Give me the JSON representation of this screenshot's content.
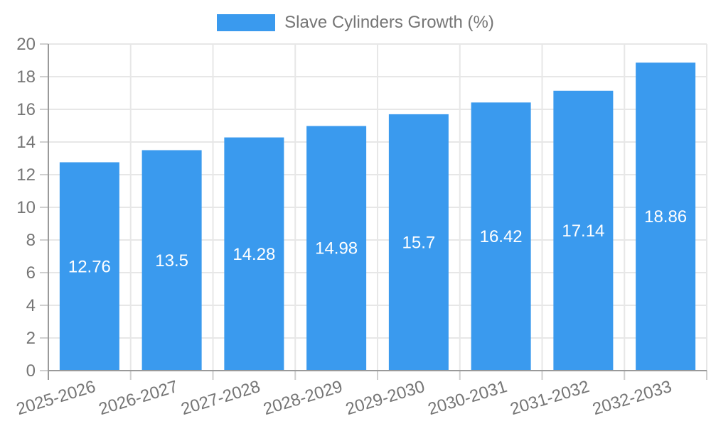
{
  "legend": {
    "label": "Slave Cylinders Growth (%)"
  },
  "chart_data": {
    "type": "bar",
    "title": "Slave Cylinders Growth (%)",
    "categories": [
      "2025-2026",
      "2026-2027",
      "2027-2028",
      "2028-2029",
      "2029-2030",
      "2030-2031",
      "2031-2032",
      "2032-2033"
    ],
    "series": [
      {
        "name": "Slave Cylinders Growth (%)",
        "values": [
          12.76,
          13.5,
          14.28,
          14.98,
          15.7,
          16.42,
          17.14,
          18.86
        ]
      }
    ],
    "xlabel": "",
    "ylabel": "",
    "ylim": [
      0,
      20
    ],
    "ytick_step": 2,
    "grid": true,
    "legend_position": "top",
    "bar_value_labels_inside": true,
    "x_label_rotation_deg": -17
  },
  "colors": {
    "bar": "#3a9aee",
    "axis": "#9a9a9a",
    "grid": "#e7e7e7",
    "tick": "#cfcfcf",
    "text": "#757575",
    "value_text": "#ffffff"
  }
}
